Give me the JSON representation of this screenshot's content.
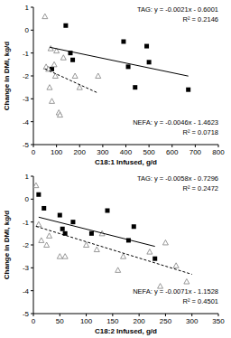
{
  "chart_data": [
    {
      "type": "scatter",
      "x_label": "C18:1 Infused, g/d",
      "y_label": "Change in DMI, kg/d",
      "xlim": [
        0,
        800
      ],
      "xticks": [
        0,
        100,
        200,
        300,
        400,
        500,
        600,
        700,
        800
      ],
      "ylim": [
        -5,
        1
      ],
      "yticks": [
        -5,
        -4,
        -3,
        -2,
        -1,
        0,
        1
      ],
      "annotations": [
        "TAG:  y = -0.0021x - 0.6001",
        "R² = 0.2146",
        "NEFA:  y = -0.0046x - 1.4623",
        "R² = 0.0718"
      ],
      "series": [
        {
          "type": "scatter",
          "marker": "square",
          "color": "#000000",
          "x": [
            140,
            160,
            170,
            80,
            390,
            410,
            440,
            490,
            500,
            670
          ],
          "values": [
            0.2,
            -1.0,
            -1.3,
            -1.7,
            -0.5,
            -1.6,
            -2.5,
            -0.7,
            -1.4,
            -2.6
          ]
        },
        {
          "type": "scatter",
          "marker": "triangle",
          "color": "#808080",
          "x": [
            50,
            55,
            65,
            70,
            75,
            80,
            90,
            95,
            100,
            110,
            115,
            130,
            180,
            200,
            280
          ],
          "values": [
            0.6,
            -1.6,
            -1.7,
            -2.5,
            -0.8,
            -3.1,
            -1.5,
            -2.0,
            -0.9,
            -3.6,
            -3.7,
            -1.2,
            -2.0,
            -2.5,
            -2.0
          ]
        },
        {
          "type": "line",
          "line_style": "solid",
          "color": "#000000",
          "x": [
            70,
            670
          ],
          "values": [
            -0.747,
            -2.007
          ]
        },
        {
          "type": "line",
          "line_style": "dashed",
          "color": "#000000",
          "x": [
            50,
            280
          ],
          "values": [
            -1.69,
            -2.75
          ]
        }
      ]
    },
    {
      "type": "scatter",
      "x_label": "C18:2 Infused, g/d",
      "y_label": "Change in DMI, kg/d",
      "xlim": [
        0,
        350
      ],
      "xticks": [
        0,
        50,
        100,
        150,
        200,
        250,
        300,
        350
      ],
      "ylim": [
        -5,
        1
      ],
      "yticks": [
        -5,
        -4,
        -3,
        -2,
        -1,
        0,
        1
      ],
      "annotations": [
        "TAG:  y = -0.0058x - 0.7296",
        "R² = 0.2472",
        "NEFA:  y = -0.0071x - 1.1528",
        "R² = 0.4501"
      ],
      "series": [
        {
          "type": "scatter",
          "marker": "square",
          "color": "#000000",
          "x": [
            10,
            20,
            50,
            55,
            60,
            75,
            110,
            140,
            180,
            190,
            230
          ],
          "values": [
            0.2,
            -0.4,
            -0.7,
            -1.3,
            -1.5,
            -1.0,
            -1.5,
            -0.5,
            -1.8,
            -1.2,
            -2.6
          ]
        },
        {
          "type": "scatter",
          "marker": "triangle",
          "color": "#808080",
          "x": [
            5,
            10,
            15,
            25,
            30,
            50,
            60,
            100,
            120,
            130,
            160,
            170,
            220,
            240,
            250,
            270,
            290
          ],
          "values": [
            0.6,
            -1.1,
            -1.8,
            -2.0,
            -1.6,
            -2.5,
            -2.5,
            -2.0,
            -2.2,
            -1.5,
            -3.1,
            -2.5,
            -2.3,
            -3.8,
            -1.9,
            -2.9,
            -3.6
          ]
        },
        {
          "type": "line",
          "line_style": "solid",
          "color": "#000000",
          "x": [
            10,
            230
          ],
          "values": [
            -0.788,
            -2.064
          ]
        },
        {
          "type": "line",
          "line_style": "dashed",
          "color": "#000000",
          "x": [
            5,
            300
          ],
          "values": [
            -1.188,
            -3.283
          ]
        }
      ]
    }
  ]
}
